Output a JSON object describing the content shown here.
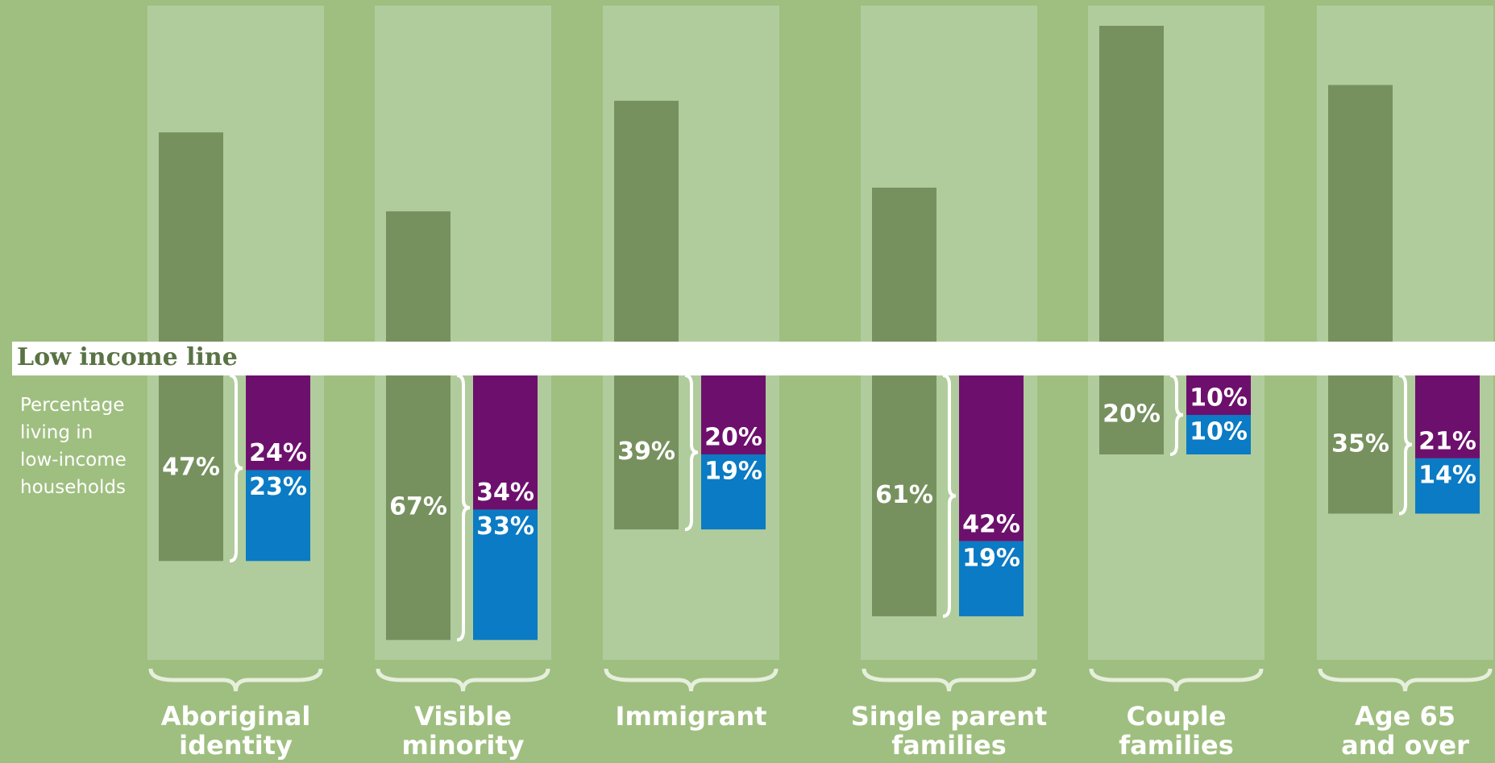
{
  "chart_data": {
    "type": "bar",
    "line_label": "Low income line",
    "axis_note": "Percentage\nliving in\nlow-income\nhouseholds",
    "categories": [
      "Aboriginal\nidentity",
      "Visible\nminority",
      "Immigrant",
      "Single parent\nfamilies",
      "Couple\nfamilies",
      "Age 65\nand over"
    ],
    "ylim": [
      0,
      100
    ],
    "totals": {
      "color": "#76915e",
      "values": [
        47,
        67,
        39,
        61,
        20,
        35
      ],
      "value_labels": [
        "47%",
        "67%",
        "39%",
        "61%",
        "20%",
        "35%"
      ]
    },
    "stacks": [
      {
        "color": "#6d106d",
        "values": [
          24,
          34,
          20,
          42,
          10,
          21
        ],
        "value_labels": [
          "24%",
          "34%",
          "20%",
          "42%",
          "10%",
          "21%"
        ]
      },
      {
        "color": "#0a7bc4",
        "values": [
          23,
          33,
          19,
          19,
          10,
          14
        ],
        "value_labels": [
          "23%",
          "33%",
          "19%",
          "19%",
          "10%",
          "14%"
        ]
      }
    ]
  }
}
